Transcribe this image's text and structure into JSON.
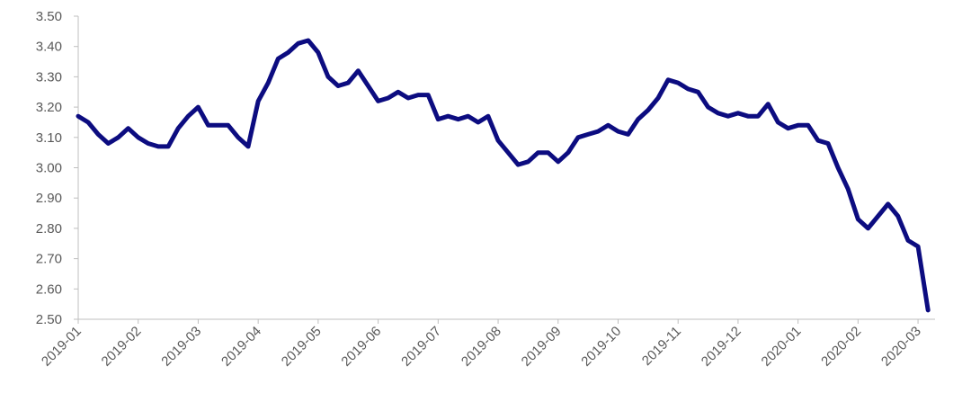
{
  "chart_data": {
    "type": "line",
    "categories": [
      "2019-01",
      null,
      null,
      null,
      null,
      null,
      "2019-02",
      null,
      null,
      null,
      null,
      null,
      "2019-03",
      null,
      null,
      null,
      null,
      null,
      "2019-04",
      null,
      null,
      null,
      null,
      null,
      "2019-05",
      null,
      null,
      null,
      null,
      null,
      "2019-06",
      null,
      null,
      null,
      null,
      null,
      "2019-07",
      null,
      null,
      null,
      null,
      null,
      "2019-08",
      null,
      null,
      null,
      null,
      null,
      "2019-09",
      null,
      null,
      null,
      null,
      null,
      "2019-10",
      null,
      null,
      null,
      null,
      null,
      "2019-11",
      null,
      null,
      null,
      null,
      null,
      "2019-12",
      null,
      null,
      null,
      null,
      null,
      "2020-01",
      null,
      null,
      null,
      null,
      null,
      "2020-02",
      null,
      null,
      null,
      null,
      null,
      "2020-03",
      null
    ],
    "values": [
      3.17,
      3.15,
      3.11,
      3.08,
      3.1,
      3.13,
      3.1,
      3.08,
      3.07,
      3.07,
      3.13,
      3.17,
      3.2,
      3.14,
      3.14,
      3.14,
      3.1,
      3.07,
      3.22,
      3.28,
      3.36,
      3.38,
      3.41,
      3.42,
      3.38,
      3.3,
      3.27,
      3.28,
      3.32,
      3.27,
      3.22,
      3.23,
      3.25,
      3.23,
      3.24,
      3.24,
      3.16,
      3.17,
      3.16,
      3.17,
      3.15,
      3.17,
      3.09,
      3.05,
      3.01,
      3.02,
      3.05,
      3.05,
      3.02,
      3.05,
      3.1,
      3.11,
      3.12,
      3.14,
      3.12,
      3.11,
      3.16,
      3.19,
      3.23,
      3.29,
      3.28,
      3.26,
      3.25,
      3.2,
      3.18,
      3.17,
      3.18,
      3.17,
      3.17,
      3.21,
      3.15,
      3.13,
      3.14,
      3.14,
      3.09,
      3.08,
      3.0,
      2.93,
      2.83,
      2.8,
      2.84,
      2.88,
      2.84,
      2.76,
      2.74,
      2.53
    ],
    "color": "#0c0c80",
    "ylim": [
      2.5,
      3.5
    ],
    "yticks": [
      {
        "value": 2.5,
        "label": "2.50"
      },
      {
        "value": 2.6,
        "label": "2.60"
      },
      {
        "value": 2.7,
        "label": "2.70"
      },
      {
        "value": 2.8,
        "label": "2.80"
      },
      {
        "value": 2.9,
        "label": "2.90"
      },
      {
        "value": 3.0,
        "label": "3.00"
      },
      {
        "value": 3.1,
        "label": "3.10"
      },
      {
        "value": 3.2,
        "label": "3.20"
      },
      {
        "value": 3.3,
        "label": "3.30"
      },
      {
        "value": 3.4,
        "label": "3.40"
      },
      {
        "value": 3.5,
        "label": "3.50"
      }
    ]
  }
}
